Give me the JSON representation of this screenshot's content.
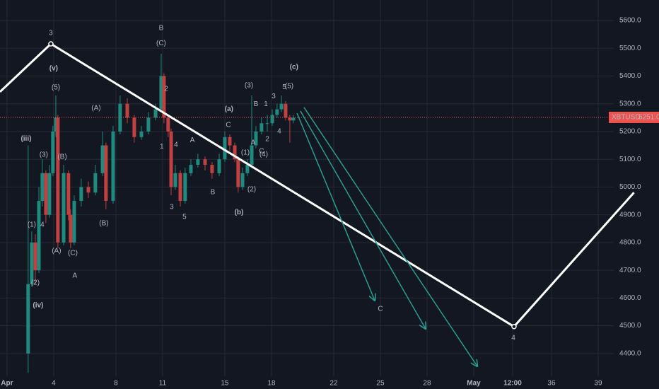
{
  "chart_data": {
    "type": "candlestick",
    "xlim": [
      0.55,
      40
    ],
    "ylim": [
      4318,
      5674
    ],
    "grid": true,
    "xticks": [
      {
        "value": 1,
        "label": "Apr"
      },
      4,
      8,
      11,
      15,
      18,
      22,
      25,
      28,
      {
        "value": 31,
        "label": "May"
      },
      {
        "value": 33.5,
        "label": "12:00"
      },
      36,
      39
    ],
    "yticks": [
      {
        "value": 4400,
        "label": "4400.0"
      },
      {
        "value": 4500,
        "label": "4500.0"
      },
      {
        "value": 4600,
        "label": "4600.0"
      },
      {
        "value": 4700,
        "label": "4700.0"
      },
      {
        "value": 4800,
        "label": "4800.0"
      },
      {
        "value": 4900,
        "label": "4900.0"
      },
      {
        "value": 5000,
        "label": "5000.0"
      },
      {
        "value": 5100,
        "label": "5100.0"
      },
      {
        "value": 5200,
        "label": "5200.0"
      },
      {
        "value": 5300,
        "label": "5300.0"
      },
      {
        "value": 5400,
        "label": "5400.0"
      },
      {
        "value": 5500,
        "label": "5500.0"
      },
      {
        "value": 5600,
        "label": "5600.0"
      }
    ],
    "up_color": "#1f8a7e",
    "down_color": "#c0413f",
    "candles": {
      "x": [
        2.36,
        2.59,
        2.82,
        3.05,
        3.27,
        3.5,
        3.73,
        3.95,
        4.14,
        4.27,
        4.64,
        4.95,
        5.09,
        5.32,
        5.77,
        6.23,
        6.68,
        7.14,
        7.36,
        7.82,
        8.27,
        8.73,
        9.18,
        9.64,
        10.09,
        10.55,
        10.91,
        11.09,
        11.36,
        11.55,
        11.82,
        12.14,
        12.45,
        12.82,
        13.27,
        13.73,
        14.18,
        14.64,
        15.0,
        15.32,
        15.64,
        15.86,
        16.14,
        16.45,
        16.73,
        17.0,
        17.36,
        17.73,
        18.05,
        18.36,
        18.64,
        18.91,
        19.18,
        19.41
      ],
      "open": [
        4400,
        4650,
        4800,
        4700,
        4950,
        5050,
        4900,
        5050,
        5200,
        5250,
        4800,
        5050,
        4900,
        4800,
        4950,
        5000,
        4980,
        5050,
        5150,
        4950,
        5200,
        5300,
        5250,
        5180,
        5200,
        5250,
        5280,
        5400,
        5250,
        5200,
        5000,
        5050,
        4950,
        5050,
        5080,
        5100,
        5080,
        5050,
        5100,
        5180,
        5150,
        5100,
        5000,
        5050,
        5080,
        5150,
        5200,
        5230,
        5230,
        5260,
        5280,
        5300,
        5250,
        5240
      ],
      "high": [
        5150,
        4840,
        4830,
        5000,
        5100,
        5060,
        5080,
        5220,
        5330,
        5260,
        5080,
        5060,
        4920,
        4970,
        5030,
        5020,
        5080,
        5200,
        5160,
        5220,
        5330,
        5320,
        5260,
        5220,
        5270,
        5300,
        5480,
        5410,
        5260,
        5210,
        5080,
        5060,
        5070,
        5100,
        5120,
        5110,
        5090,
        5120,
        5200,
        5190,
        5160,
        5110,
        5070,
        5100,
        5330,
        5220,
        5250,
        5260,
        5280,
        5300,
        5330,
        5310,
        5260,
        5260
      ],
      "low": [
        4330,
        4640,
        4650,
        4690,
        4930,
        4870,
        4890,
        5040,
        5180,
        4780,
        4790,
        4880,
        4780,
        4790,
        4930,
        4960,
        4970,
        5040,
        4920,
        4940,
        5190,
        5230,
        5160,
        5170,
        5190,
        5240,
        5270,
        5230,
        5180,
        4970,
        4990,
        4930,
        4940,
        5040,
        5070,
        5060,
        5030,
        5040,
        5090,
        5130,
        5090,
        4980,
        4990,
        5040,
        5070,
        5140,
        5190,
        5200,
        5220,
        5250,
        5270,
        5240,
        5160,
        5230
      ],
      "close": [
        4650,
        4800,
        4700,
        4950,
        5050,
        4900,
        5050,
        5200,
        5250,
        4800,
        5050,
        4900,
        4800,
        4950,
        5000,
        4980,
        5050,
        5150,
        4950,
        5200,
        5300,
        5250,
        5180,
        5200,
        5250,
        5280,
        5400,
        5250,
        5200,
        5000,
        5050,
        4950,
        5050,
        5080,
        5100,
        5080,
        5050,
        5100,
        5180,
        5150,
        5100,
        5000,
        5050,
        5080,
        5150,
        5200,
        5230,
        5230,
        5260,
        5280,
        5300,
        5250,
        5240,
        5250
      ]
    },
    "last_price": {
      "symbol": "XBTUSD",
      "value": 5251,
      "value_label": "5251.0",
      "color": "#ef5350"
    },
    "wave_path": {
      "color": "#ffffff",
      "x": [
        0.55,
        3.82,
        33.59,
        41.3
      ],
      "y": [
        5343,
        5516,
        4497,
        4980
      ]
    },
    "arrow_color": "#2a9d8f",
    "arrows": [
      {
        "x": [
          19.64,
          24.64
        ],
        "y": [
          5266,
          4591
        ]
      },
      {
        "x": [
          19.86,
          27.91
        ],
        "y": [
          5274,
          4489
        ]
      },
      {
        "x": [
          20.09,
          31.23
        ],
        "y": [
          5287,
          4354
        ]
      }
    ],
    "annotations": [
      {
        "text": "3",
        "x": 3.82,
        "y": 5554,
        "color": "#ffffff"
      },
      {
        "text": "B",
        "x": 10.91,
        "y": 5572,
        "color": "#ef5350"
      },
      {
        "text": "(C)",
        "x": 10.91,
        "y": 5518,
        "color": "#e0a04a"
      },
      {
        "text": "(v)",
        "x": 4.0,
        "y": 5427,
        "color": "#4dd0e1"
      },
      {
        "text": "(5)",
        "x": 4.14,
        "y": 5358,
        "color": "#7e7ef0"
      },
      {
        "text": "2",
        "x": 11.23,
        "y": 5353,
        "color": "#b8b8ff"
      },
      {
        "text": "(3)",
        "x": 16.55,
        "y": 5366,
        "color": "#b8b8ff"
      },
      {
        "text": "(c)",
        "x": 19.45,
        "y": 5432,
        "color": "#f5a623"
      },
      {
        "text": "3",
        "x": 18.14,
        "y": 5327,
        "color": "#e040fb"
      },
      {
        "text": "5",
        "x": 18.82,
        "y": 5360,
        "color": "#e040fb"
      },
      {
        "text": "(5)",
        "x": 19.14,
        "y": 5363,
        "color": "#b8b8ff"
      },
      {
        "text": "1",
        "x": 17.64,
        "y": 5299,
        "color": "#e040fb"
      },
      {
        "text": "(A)",
        "x": 6.73,
        "y": 5284,
        "color": "#e0a04a"
      },
      {
        "text": "(a)",
        "x": 15.27,
        "y": 5281,
        "color": "#f5a623"
      },
      {
        "text": "B",
        "x": 17.0,
        "y": 5299,
        "color": "#f0e040"
      },
      {
        "text": "C",
        "x": 15.23,
        "y": 5223,
        "color": "#f0e040"
      },
      {
        "text": "(iii)",
        "x": 2.23,
        "y": 5174,
        "color": "#4dd0e1"
      },
      {
        "text": "(3)",
        "x": 3.36,
        "y": 5116,
        "color": "#7e7ef0"
      },
      {
        "text": "(B)",
        "x": 4.55,
        "y": 5108,
        "color": "#e0a04a"
      },
      {
        "text": "1",
        "x": 10.95,
        "y": 5146,
        "color": "#b8b8ff"
      },
      {
        "text": "4",
        "x": 11.86,
        "y": 5152,
        "color": "#b8b8ff"
      },
      {
        "text": "A",
        "x": 12.91,
        "y": 5169,
        "color": "#f0e040"
      },
      {
        "text": "A",
        "x": 16.82,
        "y": 5159,
        "color": "#f0e040"
      },
      {
        "text": "2",
        "x": 17.73,
        "y": 5172,
        "color": "#e040fb"
      },
      {
        "text": "4",
        "x": 18.5,
        "y": 5200,
        "color": "#e040fb"
      },
      {
        "text": "(1)",
        "x": 16.32,
        "y": 5124,
        "color": "#b8b8ff"
      },
      {
        "text": "C",
        "x": 17.36,
        "y": 5129,
        "color": "#ffffff"
      },
      {
        "text": "(4)",
        "x": 17.5,
        "y": 5118,
        "color": "#b8b8ff"
      },
      {
        "text": "B",
        "x": 14.23,
        "y": 4981,
        "color": "#f0e040"
      },
      {
        "text": "(2)",
        "x": 16.73,
        "y": 4991,
        "color": "#b8b8ff"
      },
      {
        "text": "(b)",
        "x": 15.91,
        "y": 4909,
        "color": "#f5a623"
      },
      {
        "text": "3",
        "x": 11.59,
        "y": 4927,
        "color": "#b8b8ff"
      },
      {
        "text": "5",
        "x": 12.41,
        "y": 4892,
        "color": "#b8b8ff"
      },
      {
        "text": "(B)",
        "x": 7.23,
        "y": 4869,
        "color": "#e0a04a"
      },
      {
        "text": "(1)",
        "x": 2.59,
        "y": 4864,
        "color": "#7e7ef0"
      },
      {
        "text": "4",
        "x": 3.27,
        "y": 4864,
        "color": "#7e7ef0"
      },
      {
        "text": "(A)",
        "x": 4.18,
        "y": 4769,
        "color": "#e0a04a"
      },
      {
        "text": "(C)",
        "x": 5.23,
        "y": 4762,
        "color": "#e0a04a"
      },
      {
        "text": "A",
        "x": 5.36,
        "y": 4680,
        "color": "#ef5350"
      },
      {
        "text": "(2)",
        "x": 2.82,
        "y": 4655,
        "color": "#7e7ef0"
      },
      {
        "text": "(iv)",
        "x": 3.0,
        "y": 4573,
        "color": "#4dd0e1"
      },
      {
        "text": "C",
        "x": 25.0,
        "y": 4560,
        "color": "#ef5350"
      },
      {
        "text": "4",
        "x": 33.55,
        "y": 4456,
        "color": "#ffffff"
      }
    ]
  }
}
